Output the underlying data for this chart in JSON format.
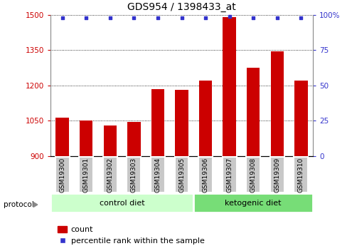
{
  "title": "GDS954 / 1398433_at",
  "samples": [
    "GSM19300",
    "GSM19301",
    "GSM19302",
    "GSM19303",
    "GSM19304",
    "GSM19305",
    "GSM19306",
    "GSM19307",
    "GSM19308",
    "GSM19309",
    "GSM19310"
  ],
  "counts": [
    1065,
    1050,
    1030,
    1045,
    1185,
    1180,
    1220,
    1490,
    1275,
    1345,
    1220
  ],
  "percentile_ranks": [
    98,
    98,
    98,
    98,
    98,
    98,
    98,
    99,
    98,
    98,
    98
  ],
  "groups": [
    "control diet",
    "control diet",
    "control diet",
    "control diet",
    "control diet",
    "control diet",
    "ketogenic diet",
    "ketogenic diet",
    "ketogenic diet",
    "ketogenic diet",
    "ketogenic diet"
  ],
  "group_colors": [
    "#ccffcc",
    "#77dd77"
  ],
  "bar_color_red": "#cc0000",
  "dot_color_blue": "#3333cc",
  "ylim_left": [
    900,
    1500
  ],
  "ylim_right": [
    0,
    100
  ],
  "yticks_left": [
    900,
    1050,
    1200,
    1350,
    1500
  ],
  "yticks_right": [
    0,
    25,
    50,
    75,
    100
  ],
  "ylabel_left_color": "#cc0000",
  "ylabel_right_color": "#3333cc",
  "title_fontsize": 10,
  "tick_fontsize": 7.5,
  "label_fontsize": 6.5,
  "group_fontsize": 8,
  "legend_fontsize": 8,
  "control_count": 6,
  "ketogenic_count": 5,
  "bar_width": 0.55
}
